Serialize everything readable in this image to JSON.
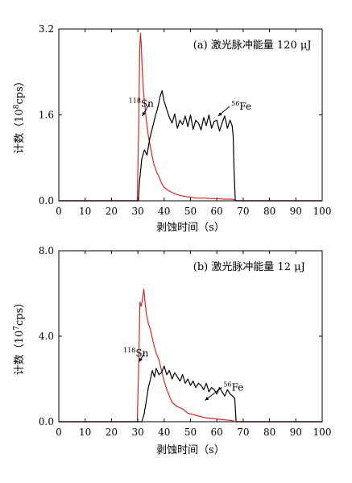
{
  "chart_data": [
    {
      "type": "line",
      "title": "(a) 激光脉冲能量 120 μJ",
      "xlabel": "剥蚀时间（s）",
      "ylabel_parts": [
        "计数（10",
        "8",
        "cps）"
      ],
      "xlim": [
        0,
        100
      ],
      "ylim": [
        0,
        3.2
      ],
      "xticks": [
        0,
        10,
        20,
        30,
        40,
        50,
        60,
        70,
        80,
        90,
        100
      ],
      "xtick_labels": [
        "0",
        "10",
        "20",
        "30",
        "40",
        "50",
        "60",
        "70",
        "80",
        "90",
        "100"
      ],
      "yticks": [
        0,
        1.6,
        3.2
      ],
      "ytick_labels": [
        "0.0",
        "1.6",
        "3.2"
      ],
      "grid": false,
      "series": [
        {
          "name": "118Sn",
          "color": "#d62728",
          "x": [
            0,
            29.8,
            30.3,
            30.7,
            31.0,
            31.3,
            31.7,
            32.2,
            33,
            34,
            35,
            36,
            37,
            38,
            39,
            40,
            42,
            44,
            46,
            48,
            50,
            52,
            55,
            58,
            60,
            63,
            66,
            67,
            68,
            70,
            100
          ],
          "y": [
            0,
            0,
            1.3,
            2.8,
            3.12,
            2.9,
            2.4,
            2.0,
            1.6,
            1.2,
            0.95,
            0.7,
            0.55,
            0.45,
            0.33,
            0.25,
            0.18,
            0.13,
            0.1,
            0.08,
            0.07,
            0.05,
            0.05,
            0.04,
            0.04,
            0.03,
            0.03,
            0.01,
            0,
            0,
            0
          ]
        },
        {
          "name": "56Fe",
          "color": "#000000",
          "x": [
            0,
            30.2,
            30.6,
            31.5,
            32.5,
            33.5,
            34.5,
            35.5,
            36.5,
            37.5,
            38.5,
            39.2,
            40,
            41,
            42,
            43,
            44,
            45,
            46,
            47,
            48,
            49,
            50,
            51,
            52,
            53,
            54,
            55,
            56,
            57,
            58,
            59,
            60,
            61,
            62,
            63,
            64,
            65,
            65.8,
            66.2,
            66.5,
            67,
            100
          ],
          "y": [
            0,
            0,
            0.35,
            0.78,
            0.95,
            0.85,
            1.15,
            1.35,
            1.55,
            1.72,
            1.95,
            2.05,
            1.85,
            1.7,
            1.55,
            1.45,
            1.62,
            1.35,
            1.5,
            1.42,
            1.58,
            1.38,
            1.6,
            1.33,
            1.5,
            1.45,
            1.32,
            1.55,
            1.4,
            1.6,
            1.35,
            1.48,
            1.5,
            1.3,
            1.45,
            1.58,
            1.35,
            1.5,
            1.4,
            1.2,
            0.6,
            0,
            0
          ]
        }
      ],
      "annotations": [
        {
          "base": "Sn",
          "sup": "118",
          "x": 26.5,
          "y": 1.75,
          "arrow_to": [
            31.7,
            1.58
          ]
        },
        {
          "base": "Fe",
          "sup": "56",
          "x": 65.5,
          "y": 1.7,
          "arrow_to": [
            60.5,
            1.58
          ]
        }
      ]
    },
    {
      "type": "line",
      "title": "(b) 激光脉冲能量 12 μJ",
      "xlabel": "剥蚀时间（s）",
      "ylabel_parts": [
        "计数（10",
        "7",
        "cps）"
      ],
      "xlim": [
        0,
        100
      ],
      "ylim": [
        0,
        8.0
      ],
      "xticks": [
        0,
        10,
        20,
        30,
        40,
        50,
        60,
        70,
        80,
        90,
        100
      ],
      "xtick_labels": [
        "0",
        "10",
        "20",
        "30",
        "40",
        "50",
        "60",
        "70",
        "80",
        "90",
        "100"
      ],
      "yticks": [
        0,
        4.0,
        8.0
      ],
      "ytick_labels": [
        "0.0",
        "4.0",
        "8.0"
      ],
      "grid": false,
      "series": [
        {
          "name": "118Sn",
          "color": "#d62728",
          "x": [
            0,
            29.8,
            30.3,
            30.8,
            31.3,
            31.8,
            32.3,
            32.8,
            33.3,
            34,
            34.8,
            35.5,
            36.3,
            37,
            38,
            39,
            40,
            41,
            42,
            43,
            45,
            47,
            49,
            52,
            55,
            58,
            62,
            66,
            67,
            100
          ],
          "y": [
            0,
            0,
            2.5,
            5.6,
            5.4,
            5.8,
            6.2,
            5.5,
            5.0,
            4.6,
            4.3,
            3.9,
            3.5,
            3.2,
            2.9,
            2.4,
            1.9,
            1.5,
            1.2,
            0.9,
            0.7,
            0.6,
            0.4,
            0.3,
            0.2,
            0.15,
            0.1,
            0.05,
            0,
            0
          ]
        },
        {
          "name": "56Fe",
          "color": "#000000",
          "x": [
            0,
            31.5,
            32.3,
            33,
            34,
            34.8,
            35.5,
            36.3,
            37,
            38,
            39,
            40,
            41,
            42,
            43,
            44,
            45,
            46,
            47,
            48,
            49,
            50,
            51,
            52,
            53,
            54,
            55,
            56,
            57,
            58,
            59,
            60,
            61,
            62,
            63,
            64,
            65,
            66,
            66.8,
            67.3,
            100
          ],
          "y": [
            0,
            0,
            0.3,
            0.8,
            1.6,
            2.0,
            2.4,
            2.1,
            2.5,
            2.2,
            2.3,
            2.6,
            2.2,
            2.4,
            2.0,
            2.3,
            2.1,
            1.9,
            2.2,
            1.8,
            2.0,
            1.7,
            1.9,
            1.6,
            1.8,
            1.7,
            1.5,
            1.8,
            1.4,
            1.6,
            1.5,
            1.3,
            1.6,
            1.4,
            1.2,
            1.5,
            1.3,
            1.2,
            1.1,
            0,
            0
          ]
        }
      ],
      "annotations": [
        {
          "base": "Sn",
          "sup": "118",
          "x": 24.5,
          "y": 3.05,
          "arrow_to": [
            30.5,
            2.8
          ]
        },
        {
          "base": "Fe",
          "sup": "56",
          "x": 62.5,
          "y": 1.45,
          "arrow_to": [
            55.5,
            1.0
          ]
        }
      ]
    }
  ]
}
